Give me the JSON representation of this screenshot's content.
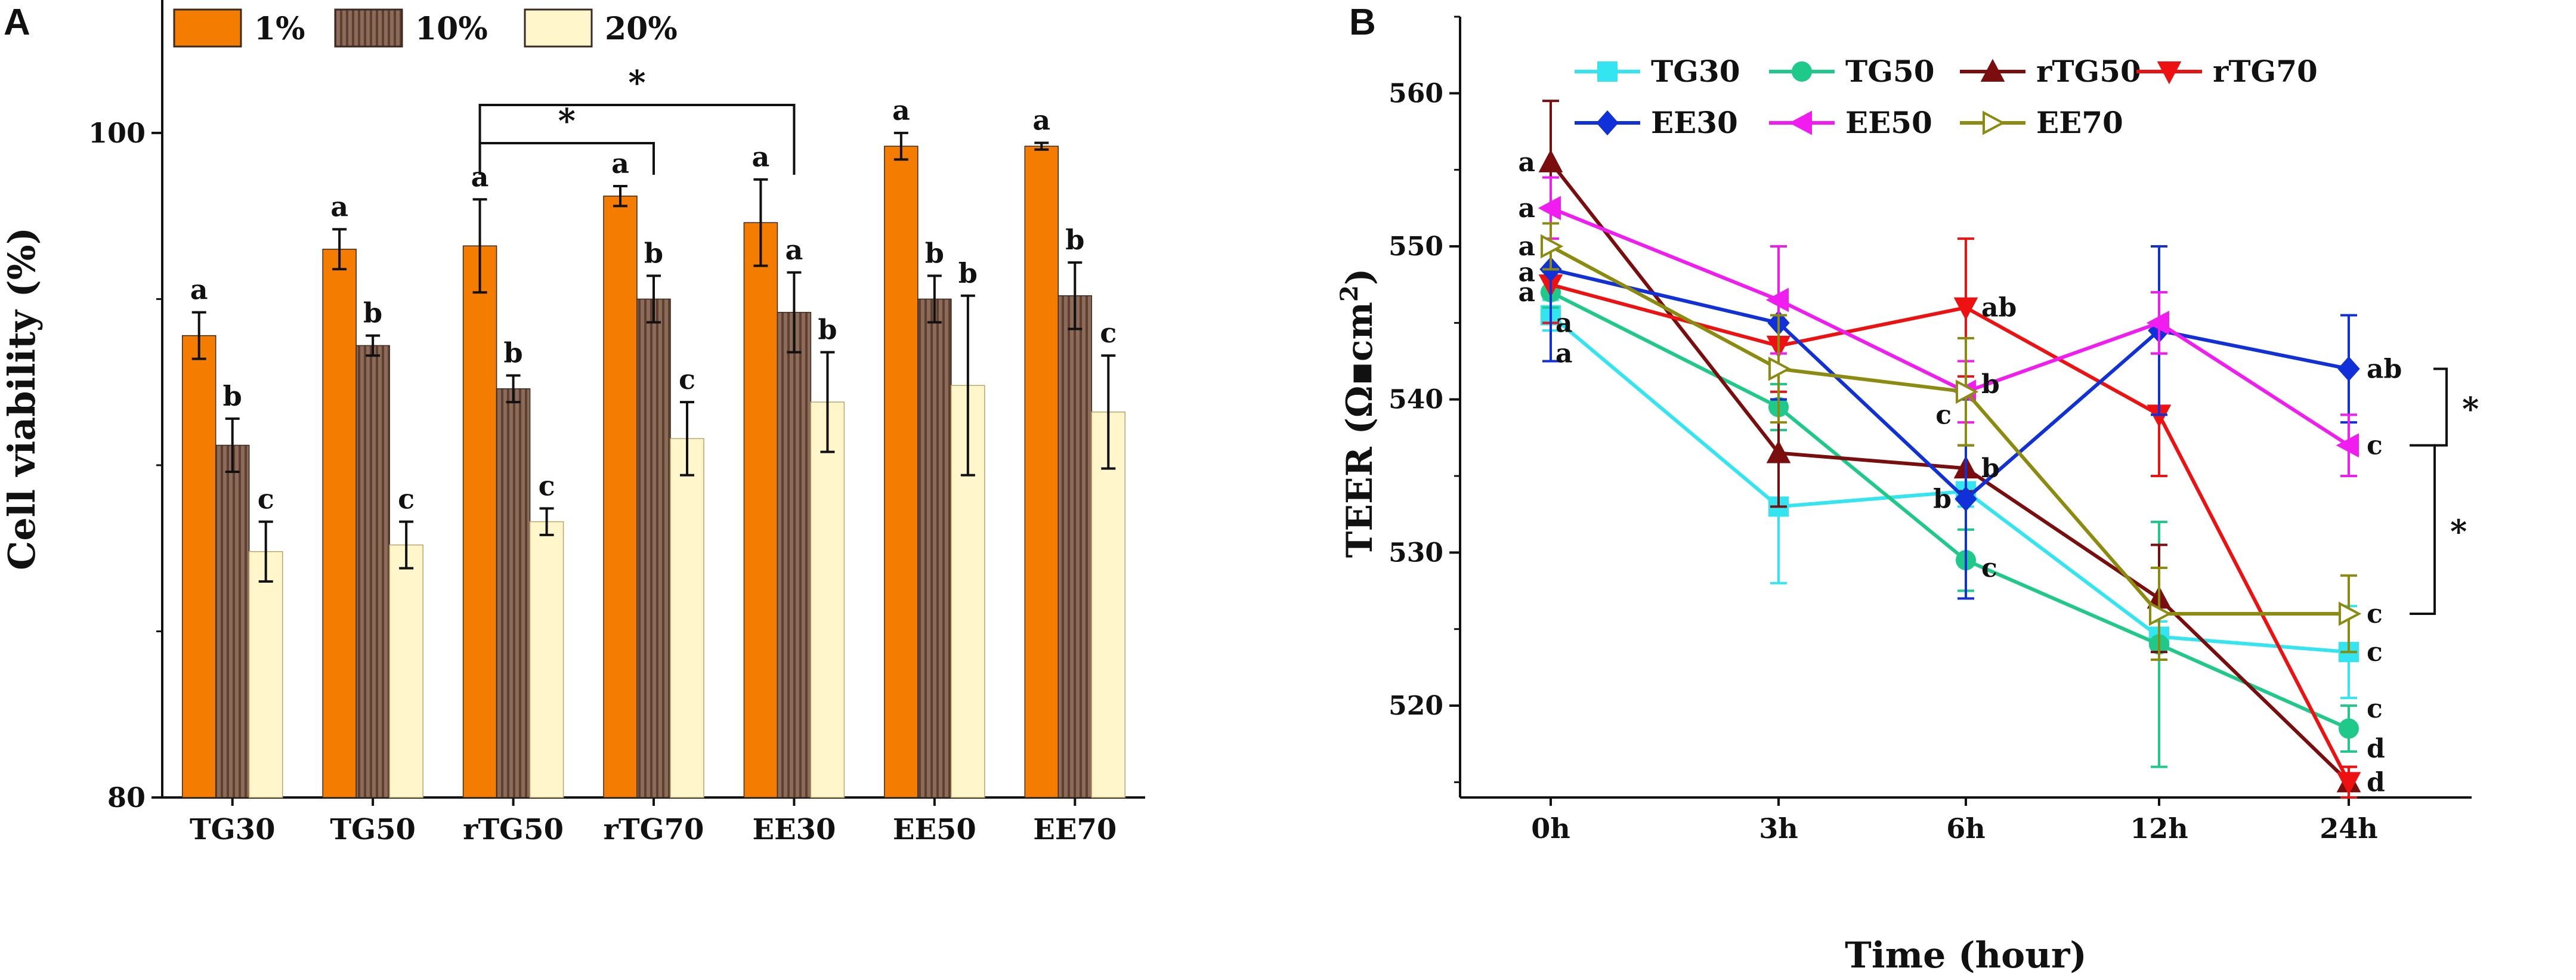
{
  "chart_data": [
    {
      "type": "bar",
      "panel": "A",
      "ylabel": "Cell viability (%)",
      "xlabel": "",
      "ylim": [
        80,
        104
      ],
      "yticks": [
        80,
        100
      ],
      "categories": [
        "TG30",
        "TG50",
        "rTG50",
        "rTG70",
        "EE30",
        "EE50",
        "EE70"
      ],
      "series": [
        {
          "name": "1%",
          "color": "#f47c00",
          "pattern": "solid",
          "values": [
            93.9,
            96.5,
            96.6,
            98.1,
            97.3,
            99.6,
            99.6
          ],
          "errors": [
            0.7,
            0.6,
            1.4,
            0.3,
            1.3,
            0.4,
            0.1
          ],
          "labels": [
            "a",
            "a",
            "a",
            "a",
            "a",
            "a",
            "a"
          ]
        },
        {
          "name": "10%",
          "color": "#8c6b5a",
          "pattern": "stripes",
          "values": [
            90.6,
            93.6,
            92.3,
            95.0,
            94.6,
            95.0,
            95.1
          ],
          "errors": [
            0.8,
            0.3,
            0.4,
            0.7,
            1.2,
            0.7,
            1.0
          ],
          "labels": [
            "b",
            "b",
            "b",
            "b",
            "a",
            "b",
            "b"
          ]
        },
        {
          "name": "20%",
          "color": "#fff6cc",
          "pattern": "solid",
          "values": [
            87.4,
            87.6,
            88.3,
            90.8,
            91.9,
            92.4,
            91.6
          ],
          "errors": [
            0.9,
            0.7,
            0.4,
            1.1,
            1.5,
            2.7,
            1.7
          ],
          "labels": [
            "c",
            "c",
            "c",
            "c",
            "b",
            "b",
            "c"
          ]
        }
      ],
      "significance": [
        {
          "from": "rTG50",
          "to": "rTG70",
          "label": "*"
        },
        {
          "from": "rTG50",
          "to": "EE30",
          "label": "*"
        }
      ]
    },
    {
      "type": "line",
      "panel": "B",
      "xlabel": "Time (hour)",
      "ylabel": "TEER (Ω▪cm²)",
      "ylabel_main": "TEER (Ω▪cm",
      "ylabel_sup": "2",
      "ylabel_end": ")",
      "x": [
        "0h",
        "3h",
        "6h",
        "12h",
        "24h"
      ],
      "ylim": [
        514,
        565
      ],
      "yticks": [
        520,
        530,
        540,
        550,
        560
      ],
      "series": [
        {
          "name": "TG30",
          "color": "#33e5f0",
          "marker": "square",
          "filled": true,
          "values": [
            545.5,
            533.0,
            534.0,
            524.5,
            523.5
          ],
          "errors": [
            1.0,
            5.0,
            1.0,
            1.0,
            3.0
          ]
        },
        {
          "name": "TG50",
          "color": "#1ec98a",
          "marker": "circle",
          "filled": true,
          "values": [
            547.0,
            539.5,
            529.5,
            524.0,
            518.5
          ],
          "errors": [
            1.0,
            1.5,
            2.0,
            8.0,
            1.5
          ]
        },
        {
          "name": "rTG50",
          "color": "#7a0d0d",
          "marker": "triangle-up",
          "filled": true,
          "values": [
            555.5,
            536.5,
            535.5,
            527.0,
            515.0
          ],
          "errors": [
            4.0,
            3.5,
            1.5,
            3.5,
            1.0
          ]
        },
        {
          "name": "rTG70",
          "color": "#ee1111",
          "marker": "triangle-down",
          "filled": true,
          "values": [
            547.5,
            543.5,
            546.0,
            539.0,
            515.0
          ],
          "errors": [
            2.5,
            3.0,
            4.5,
            4.0,
            1.0
          ]
        },
        {
          "name": "EE30",
          "color": "#1030d8",
          "marker": "diamond",
          "filled": true,
          "values": [
            548.5,
            545.0,
            533.5,
            544.5,
            542.0
          ],
          "errors": [
            6.0,
            5.0,
            6.5,
            5.5,
            3.5
          ]
        },
        {
          "name": "EE50",
          "color": "#f01cf0",
          "marker": "triangle-left",
          "filled": true,
          "values": [
            552.5,
            546.5,
            540.5,
            545.0,
            537.0
          ],
          "errors": [
            2.0,
            3.5,
            2.0,
            2.0,
            2.0
          ]
        },
        {
          "name": "EE70",
          "color": "#8b8b10",
          "marker": "triangle-right",
          "filled": false,
          "values": [
            550.0,
            542.0,
            540.5,
            526.0,
            526.0
          ],
          "errors": [
            1.5,
            3.5,
            3.5,
            3.0,
            2.5
          ]
        }
      ],
      "annotations": [
        {
          "text": "a",
          "x": "0h",
          "y": 555.5
        },
        {
          "text": "a",
          "x": "0h",
          "y": 552.5
        },
        {
          "text": "a",
          "x": "0h",
          "y": 550.0
        },
        {
          "text": "a",
          "x": "0h",
          "y": 548.3
        },
        {
          "text": "a",
          "x": "0h",
          "y": 547.0
        },
        {
          "text": "a",
          "x": "0h",
          "y": 545.0
        },
        {
          "text": "a",
          "x": "0h",
          "y": 543.0
        },
        {
          "text": "ab",
          "x": "6h",
          "y": 546.0
        },
        {
          "text": "b",
          "x": "6h",
          "y": 541.0
        },
        {
          "text": "c",
          "x": "6h",
          "y": 539.0
        },
        {
          "text": "b",
          "x": "6h",
          "y": 535.5
        },
        {
          "text": "b",
          "x": "6h",
          "y": 533.5
        },
        {
          "text": "c",
          "x": "6h",
          "y": 529.0
        },
        {
          "text": "ab",
          "x": "24h",
          "y": 542.0
        },
        {
          "text": "c",
          "x": "24h",
          "y": 537.0
        },
        {
          "text": "c",
          "x": "24h",
          "y": 526.0
        },
        {
          "text": "c",
          "x": "24h",
          "y": 523.5
        },
        {
          "text": "c",
          "x": "24h",
          "y": 519.8
        },
        {
          "text": "d",
          "x": "24h",
          "y": 517.2
        },
        {
          "text": "d",
          "x": "24h",
          "y": 515.0
        }
      ],
      "significance": [
        {
          "from_y": 542.0,
          "to_y": 537.0,
          "label": "*"
        },
        {
          "from_y": 537.0,
          "to_y": 526.0,
          "label": "*"
        }
      ]
    }
  ],
  "panels": {
    "a_label": "A",
    "b_label": "B"
  }
}
